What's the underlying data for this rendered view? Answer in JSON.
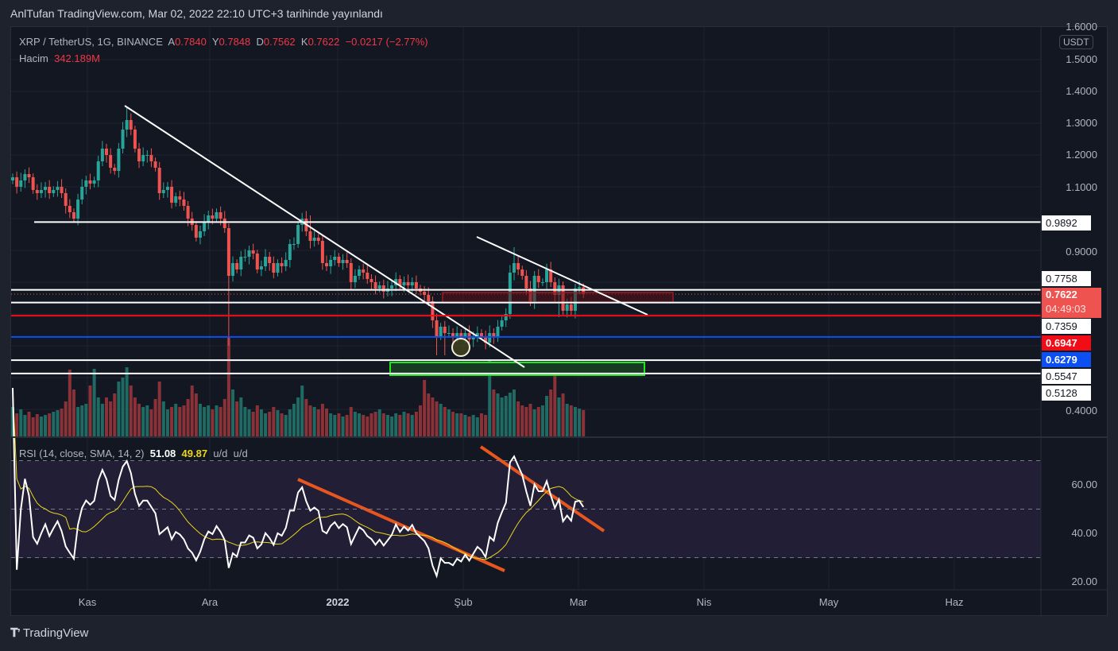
{
  "header": {
    "title": "AnlTufan TradingView.com, Mar 02, 2022 22:10 UTC+3 tarihinde yayınlandı"
  },
  "legend": {
    "symbol": "XRP / TetherUS, 1G, BINANCE",
    "o_label": "A",
    "o": "0.7840",
    "h_label": "Y",
    "h": "0.7848",
    "l_label": "D",
    "l": "0.7562",
    "c_label": "K",
    "c": "0.7622",
    "change": "−0.0217 (−2.77%)",
    "volume_label": "Hacim",
    "volume": "342.189M"
  },
  "rsi_legend": {
    "label": "RSI (14, close, SMA, 14, 2)",
    "rsi": "51.08",
    "ma": "49.87",
    "u1": "u/d",
    "u2": "u/d"
  },
  "currency_badge": "USDT",
  "price_ticks": [
    "1.6000",
    "1.5000",
    "1.4000",
    "1.3000",
    "1.2000",
    "1.1000",
    "0.9000",
    "0.4000"
  ],
  "price_tags": [
    {
      "value": "0.9892",
      "bg": "#ffffff",
      "fg": "#131722"
    },
    {
      "value": "0.7758",
      "bg": "#ffffff",
      "fg": "#131722"
    },
    {
      "value": "0.7622",
      "sub": "04:49:03",
      "bg": "#ef5350",
      "fg": "#ffffff"
    },
    {
      "value": "0.7359",
      "bg": "#ffffff",
      "fg": "#131722"
    },
    {
      "value": "0.6947",
      "bg": "#f20d16",
      "fg": "#ffffff"
    },
    {
      "value": "0.6279",
      "bg": "#0c4ff2",
      "fg": "#ffffff"
    },
    {
      "value": "0.5547",
      "bg": "#ffffff",
      "fg": "#131722"
    },
    {
      "value": "0.5128",
      "bg": "#ffffff",
      "fg": "#131722"
    }
  ],
  "rsi_ticks": [
    "60.00",
    "40.00",
    "20.00"
  ],
  "time_labels": [
    "Kas",
    "Ara",
    "2022",
    "Şub",
    "Mar",
    "Nis",
    "May",
    "Haz"
  ],
  "brand": "TradingView",
  "colors": {
    "up": "#26a69a",
    "down": "#ef5350",
    "rsi": "#ffffff",
    "rsi_ma": "#e9d71c",
    "trend": "#ffffff",
    "rsi_trend": "#e8561f"
  },
  "chart_data": {
    "type": "candlestick",
    "title": "XRP / TetherUS, 1G, BINANCE",
    "x_start": "2021-10-13",
    "x_end": "2022-03-02",
    "ylim": [
      0.38,
      1.62
    ],
    "closes": [
      1.13,
      1.1,
      1.12,
      1.14,
      1.13,
      1.09,
      1.08,
      1.09,
      1.1,
      1.08,
      1.09,
      1.1,
      1.08,
      1.04,
      1.02,
      1.0,
      1.06,
      1.1,
      1.12,
      1.11,
      1.12,
      1.18,
      1.22,
      1.2,
      1.16,
      1.15,
      1.22,
      1.28,
      1.31,
      1.28,
      1.22,
      1.18,
      1.2,
      1.2,
      1.18,
      1.16,
      1.08,
      1.09,
      1.1,
      1.05,
      1.07,
      1.06,
      1.04,
      1.0,
      0.98,
      0.94,
      0.96,
      0.99,
      1.01,
      1.0,
      1.02,
      1.0,
      0.97,
      0.82,
      0.86,
      0.84,
      0.88,
      0.88,
      0.9,
      0.89,
      0.84,
      0.85,
      0.88,
      0.86,
      0.83,
      0.86,
      0.85,
      0.87,
      0.92,
      0.92,
      0.98,
      1.0,
      0.96,
      0.93,
      0.94,
      0.93,
      0.86,
      0.85,
      0.87,
      0.88,
      0.86,
      0.87,
      0.86,
      0.8,
      0.82,
      0.84,
      0.83,
      0.81,
      0.8,
      0.78,
      0.79,
      0.77,
      0.78,
      0.79,
      0.81,
      0.79,
      0.8,
      0.79,
      0.8,
      0.78,
      0.77,
      0.76,
      0.74,
      0.68,
      0.63,
      0.66,
      0.64,
      0.64,
      0.63,
      0.64,
      0.63,
      0.64,
      0.62,
      0.63,
      0.64,
      0.63,
      0.61,
      0.64,
      0.63,
      0.66,
      0.68,
      0.7,
      0.83,
      0.86,
      0.84,
      0.82,
      0.78,
      0.74,
      0.82,
      0.8,
      0.8,
      0.84,
      0.8,
      0.76,
      0.79,
      0.71,
      0.73,
      0.71,
      0.78,
      0.784,
      0.7622
    ],
    "first_open": 1.12,
    "wick_overrides": {
      "28": {
        "h": 1.35
      },
      "53": {
        "l": 0.6
      },
      "73": {
        "h": 1.01
      },
      "104": {
        "l": 0.57
      },
      "106": {
        "l": 0.57
      },
      "123": {
        "h": 0.91
      },
      "134": {
        "l": 0.69
      }
    },
    "volumes_m": [
      380,
      300,
      350,
      280,
      320,
      250,
      290,
      260,
      280,
      300,
      320,
      340,
      360,
      450,
      850,
      600,
      380,
      400,
      420,
      650,
      860,
      500,
      420,
      500,
      450,
      550,
      700,
      750,
      880,
      650,
      500,
      420,
      380,
      400,
      350,
      480,
      700,
      450,
      350,
      380,
      420,
      380,
      400,
      480,
      650,
      550,
      420,
      380,
      400,
      350,
      400,
      380,
      480,
      1260,
      600,
      450,
      500,
      380,
      350,
      320,
      400,
      350,
      300,
      320,
      380,
      340,
      300,
      280,
      350,
      420,
      500,
      650,
      480,
      400,
      380,
      350,
      420,
      360,
      300,
      280,
      300,
      260,
      280,
      380,
      320,
      300,
      280,
      260,
      300,
      320,
      350,
      300,
      280,
      260,
      300,
      280,
      320,
      300,
      280,
      320,
      400,
      720,
      550,
      500,
      450,
      420,
      380,
      350,
      320,
      300,
      300,
      280,
      260,
      280,
      250,
      300,
      280,
      980,
      600,
      550,
      500,
      520,
      560,
      600,
      450,
      400,
      380,
      420,
      350,
      380,
      400,
      520,
      600,
      950,
      500,
      550,
      420,
      400,
      380,
      360,
      342
    ],
    "horizontal_levels": [
      0.9892,
      0.7758,
      0.7359,
      0.6947,
      0.6279,
      0.5547,
      0.5128
    ],
    "rsi": {
      "period": 14,
      "ma_period": 14,
      "ylim": [
        15,
        80
      ],
      "bands": [
        70,
        50,
        30
      ]
    }
  }
}
